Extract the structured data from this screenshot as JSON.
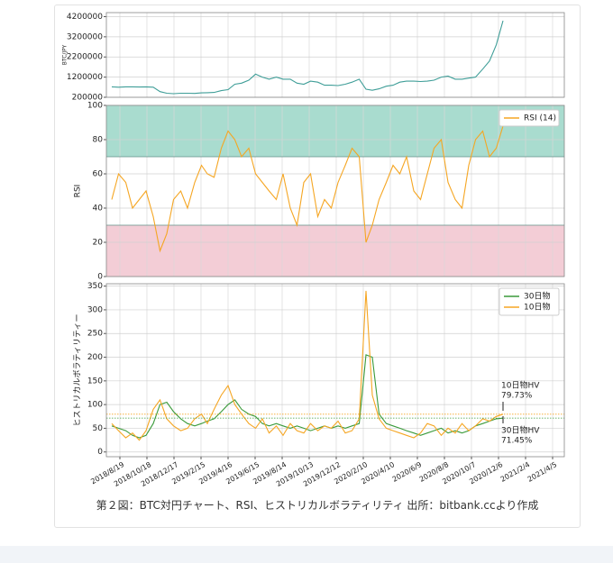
{
  "caption": "第２図：BTC対円チャート、RSI、ヒストリカルボラティリティ 出所：bitbank.ccより作成",
  "chart_data": [
    {
      "type": "line",
      "ylabel": "BTC/JPY",
      "x": [
        "2018/8/1",
        "2018/8/16",
        "2018/9/1",
        "2018/9/16",
        "2018/10/1",
        "2018/10/16",
        "2018/11/1",
        "2018/11/16",
        "2018/12/1",
        "2018/12/16",
        "2019/1/1",
        "2019/1/16",
        "2019/2/1",
        "2019/2/16",
        "2019/3/1",
        "2019/3/16",
        "2019/4/1",
        "2019/4/16",
        "2019/5/1",
        "2019/5/16",
        "2019/6/1",
        "2019/6/16",
        "2019/7/1",
        "2019/7/16",
        "2019/8/1",
        "2019/8/16",
        "2019/9/1",
        "2019/9/16",
        "2019/10/1",
        "2019/10/16",
        "2019/11/1",
        "2019/11/16",
        "2019/12/1",
        "2019/12/16",
        "2020/1/1",
        "2020/1/16",
        "2020/2/1",
        "2020/2/16",
        "2020/3/1",
        "2020/3/16",
        "2020/4/1",
        "2020/4/16",
        "2020/5/1",
        "2020/5/16",
        "2020/6/1",
        "2020/6/16",
        "2020/7/1",
        "2020/7/16",
        "2020/8/1",
        "2020/8/16",
        "2020/9/1",
        "2020/9/16",
        "2020/10/1",
        "2020/10/16",
        "2020/11/1",
        "2020/11/16",
        "2020/12/1",
        "2020/12/16"
      ],
      "series": [
        {
          "color": "#3f9e98",
          "values": [
            720000,
            700000,
            720000,
            720000,
            710000,
            720000,
            700000,
            480000,
            400000,
            380000,
            400000,
            400000,
            390000,
            420000,
            430000,
            440000,
            530000,
            580000,
            850000,
            900000,
            1050000,
            1350000,
            1200000,
            1100000,
            1200000,
            1100000,
            1100000,
            900000,
            850000,
            1000000,
            950000,
            800000,
            800000,
            780000,
            850000,
            950000,
            1100000,
            600000,
            550000,
            620000,
            750000,
            800000,
            950000,
            1000000,
            1000000,
            980000,
            1000000,
            1050000,
            1200000,
            1250000,
            1100000,
            1100000,
            1150000,
            1200000,
            1600000,
            2000000,
            2800000,
            4000000
          ]
        }
      ],
      "xlim": [
        "2018/7/20",
        "2021/5/1"
      ],
      "ylim": [
        200000,
        4400000
      ],
      "yticks": [
        200000,
        1200000,
        2200000,
        3200000,
        4200000
      ],
      "grid": true
    },
    {
      "type": "line",
      "ylabel": "RSI",
      "legend": "upper right",
      "x": [
        "2018/8/1",
        "2018/8/16",
        "2018/9/1",
        "2018/9/16",
        "2018/10/1",
        "2018/10/16",
        "2018/11/1",
        "2018/11/16",
        "2018/12/1",
        "2018/12/16",
        "2019/1/1",
        "2019/1/16",
        "2019/2/1",
        "2019/2/16",
        "2019/3/1",
        "2019/3/16",
        "2019/4/1",
        "2019/4/16",
        "2019/5/1",
        "2019/5/16",
        "2019/6/1",
        "2019/6/16",
        "2019/7/1",
        "2019/7/16",
        "2019/8/1",
        "2019/8/16",
        "2019/9/1",
        "2019/9/16",
        "2019/10/1",
        "2019/10/16",
        "2019/11/1",
        "2019/11/16",
        "2019/12/1",
        "2019/12/16",
        "2020/1/1",
        "2020/1/16",
        "2020/2/1",
        "2020/2/16",
        "2020/3/1",
        "2020/3/16",
        "2020/4/1",
        "2020/4/16",
        "2020/5/1",
        "2020/5/16",
        "2020/6/1",
        "2020/6/16",
        "2020/7/1",
        "2020/7/16",
        "2020/8/1",
        "2020/8/16",
        "2020/9/1",
        "2020/9/16",
        "2020/10/1",
        "2020/10/16",
        "2020/11/1",
        "2020/11/16",
        "2020/12/1",
        "2020/12/16"
      ],
      "series": [
        {
          "name": "RSI (14)",
          "color": "#f5a623",
          "values": [
            45,
            60,
            55,
            40,
            45,
            50,
            35,
            15,
            25,
            45,
            50,
            40,
            55,
            65,
            60,
            58,
            75,
            85,
            80,
            70,
            75,
            60,
            55,
            50,
            45,
            60,
            40,
            30,
            55,
            60,
            35,
            45,
            40,
            55,
            65,
            75,
            70,
            20,
            30,
            45,
            55,
            65,
            60,
            70,
            50,
            45,
            60,
            75,
            80,
            55,
            45,
            40,
            65,
            80,
            85,
            70,
            75,
            88
          ]
        }
      ],
      "bands": [
        {
          "from": 70,
          "to": 100,
          "color": "#a9dccf"
        },
        {
          "from": 0,
          "to": 30,
          "color": "#f3cdd6"
        }
      ],
      "xlim": [
        "2018/7/20",
        "2021/5/1"
      ],
      "ylim": [
        0,
        100
      ],
      "yticks": [
        0,
        20,
        40,
        60,
        80,
        100
      ],
      "grid": true
    },
    {
      "type": "line",
      "ylabel": "ヒストリカルボラティリティー",
      "legend": "upper right",
      "x": [
        "2018/8/1",
        "2018/8/16",
        "2018/9/1",
        "2018/9/16",
        "2018/10/1",
        "2018/10/16",
        "2018/11/1",
        "2018/11/16",
        "2018/12/1",
        "2018/12/16",
        "2019/1/1",
        "2019/1/16",
        "2019/2/1",
        "2019/2/16",
        "2019/3/1",
        "2019/3/16",
        "2019/4/1",
        "2019/4/16",
        "2019/5/1",
        "2019/5/16",
        "2019/6/1",
        "2019/6/16",
        "2019/7/1",
        "2019/7/16",
        "2019/8/1",
        "2019/8/16",
        "2019/9/1",
        "2019/9/16",
        "2019/10/1",
        "2019/10/16",
        "2019/11/1",
        "2019/11/16",
        "2019/12/1",
        "2019/12/16",
        "2020/1/1",
        "2020/1/16",
        "2020/2/1",
        "2020/2/16",
        "2020/3/1",
        "2020/3/16",
        "2020/4/1",
        "2020/4/16",
        "2020/5/1",
        "2020/5/16",
        "2020/6/1",
        "2020/6/16",
        "2020/7/1",
        "2020/7/16",
        "2020/8/1",
        "2020/8/16",
        "2020/9/1",
        "2020/9/16",
        "2020/10/1",
        "2020/10/16",
        "2020/11/1",
        "2020/11/16",
        "2020/12/1",
        "2020/12/16"
      ],
      "series": [
        {
          "name": "30日物",
          "color": "#3a9a3a",
          "values": [
            55,
            50,
            45,
            35,
            30,
            35,
            60,
            100,
            105,
            85,
            70,
            60,
            55,
            60,
            65,
            70,
            85,
            100,
            110,
            90,
            80,
            75,
            60,
            55,
            60,
            55,
            50,
            55,
            50,
            45,
            50,
            55,
            50,
            55,
            50,
            55,
            60,
            205,
            200,
            80,
            60,
            55,
            50,
            45,
            40,
            35,
            40,
            45,
            50,
            40,
            45,
            40,
            45,
            55,
            60,
            65,
            70,
            71.45
          ]
        },
        {
          "name": "10日物",
          "color": "#f5a623",
          "values": [
            60,
            45,
            30,
            40,
            25,
            45,
            90,
            110,
            70,
            55,
            45,
            50,
            70,
            80,
            60,
            90,
            120,
            140,
            100,
            80,
            60,
            50,
            70,
            40,
            55,
            35,
            60,
            45,
            40,
            60,
            45,
            55,
            50,
            65,
            40,
            45,
            70,
            340,
            120,
            70,
            50,
            45,
            40,
            35,
            30,
            40,
            60,
            55,
            35,
            50,
            40,
            60,
            45,
            55,
            70,
            65,
            75,
            79.73
          ]
        }
      ],
      "annotations": [
        {
          "title": "10日物HV",
          "text": "79.73%"
        },
        {
          "title": "30日物HV",
          "text": "71.45%"
        }
      ],
      "xlim": [
        "2018/7/20",
        "2021/5/1"
      ],
      "xticks": [
        "2018/8/19",
        "2018/10/18",
        "2018/12/17",
        "2019/2/15",
        "2019/4/16",
        "2019/6/15",
        "2019/8/14",
        "2019/10/13",
        "2019/12/12",
        "2020/2/10",
        "2020/4/10",
        "2020/6/9",
        "2020/8/8",
        "2020/10/7",
        "2020/12/6",
        "2021/2/4",
        "2021/4/5"
      ],
      "ylim": [
        -10,
        355
      ],
      "yticks": [
        0,
        50,
        100,
        150,
        200,
        250,
        300,
        350
      ],
      "grid": true
    }
  ]
}
